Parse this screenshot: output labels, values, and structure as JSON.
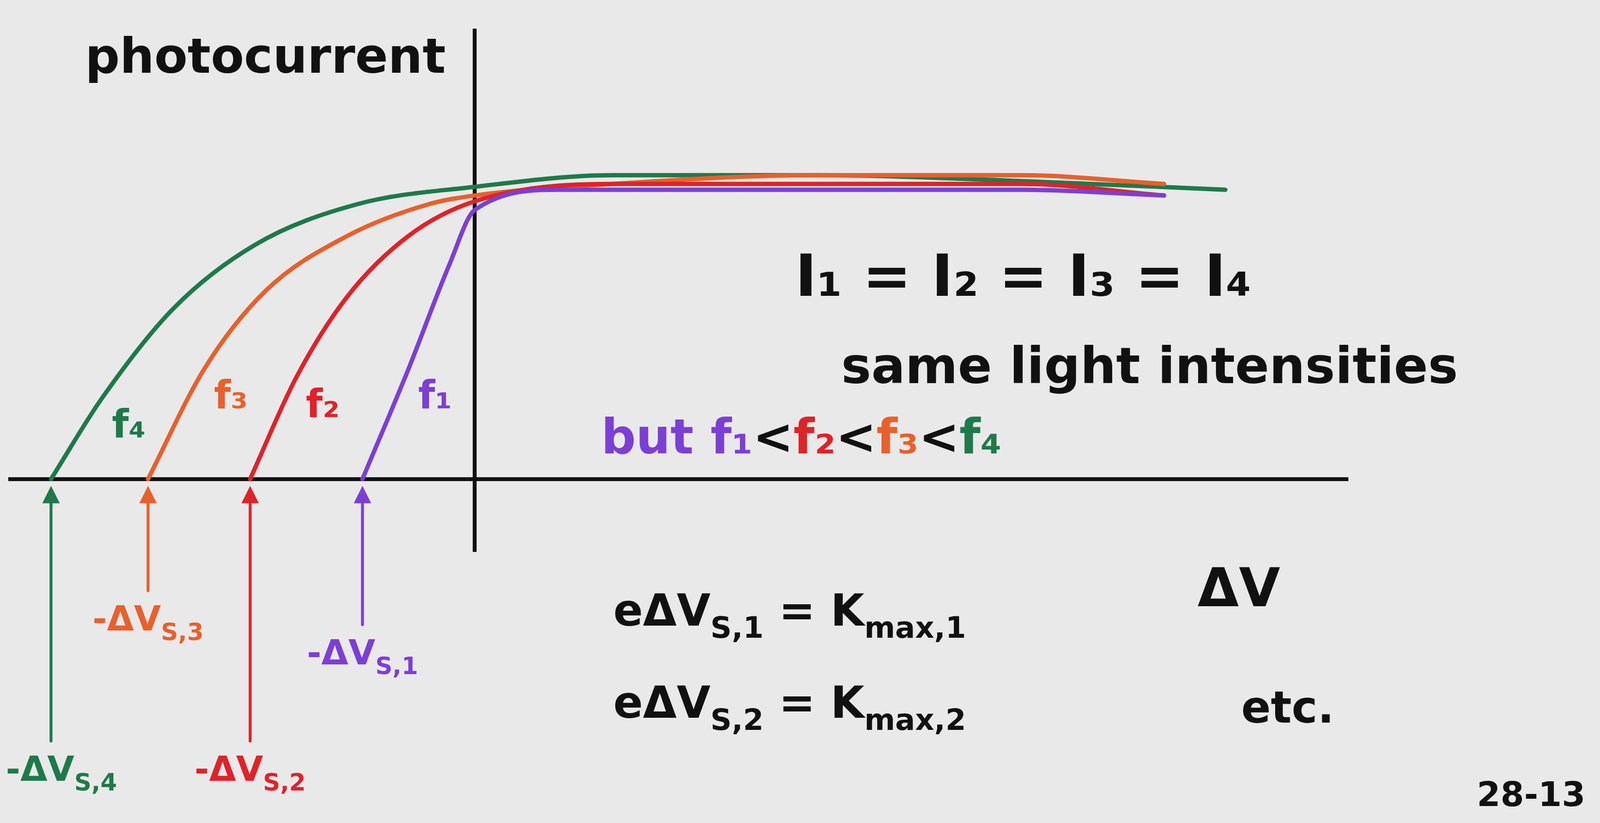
{
  "chart_data": {
    "type": "line",
    "x_label": "ΔV",
    "y_label": "photocurrent",
    "xlim": [
      -9.1,
      17.1
    ],
    "ylim": [
      -2.5,
      15.5
    ],
    "tick_labels": false,
    "grid": false,
    "series": [
      {
        "name": "f₁",
        "color": "#7b3fd6",
        "x": [
          -2.2,
          -1.3,
          -0.5,
          0,
          1.7,
          6.7,
          10.7,
          13.5
        ],
        "values": [
          0,
          3.8,
          7.4,
          9.3,
          10.0,
          10.0,
          10.0,
          9.8
        ],
        "stopping_label": [
          {
            "text": "-ΔV"
          },
          {
            "text": "S,1",
            "sub": true
          }
        ]
      },
      {
        "name": "f₂",
        "color": "#e0222a",
        "x": [
          -4.4,
          -3.5,
          -2.5,
          -1.3,
          0,
          2.7,
          6.7,
          10.7,
          13.5
        ],
        "values": [
          0,
          3.5,
          6.3,
          8.4,
          9.6,
          10.2,
          10.2,
          10.2,
          9.8
        ],
        "stopping_label": [
          {
            "text": "-ΔV"
          },
          {
            "text": "S,2",
            "sub": true
          }
        ]
      },
      {
        "name": "f₃",
        "color": "#e8602c",
        "x": [
          -6.4,
          -5.3,
          -4.1,
          -2.5,
          -0.9,
          0,
          2.7,
          6.7,
          10.7,
          13.5
        ],
        "values": [
          0,
          3.8,
          6.5,
          8.4,
          9.5,
          9.8,
          10.2,
          10.5,
          10.5,
          10.2
        ],
        "stopping_label": [
          {
            "text": "-ΔV"
          },
          {
            "text": "S,3",
            "sub": true
          }
        ]
      },
      {
        "name": "f₄",
        "color": "#1e7a4a",
        "x": [
          -8.3,
          -7.3,
          -5.9,
          -4.3,
          -2.3,
          0,
          2.7,
          6.7,
          10.7,
          14.7
        ],
        "values": [
          0,
          2.8,
          5.9,
          8.1,
          9.5,
          10.1,
          10.5,
          10.5,
          10.3,
          10.0
        ],
        "stopping_label": [
          {
            "text": "-ΔV"
          },
          {
            "text": "S,4",
            "sub": true
          }
        ]
      }
    ],
    "annotations": [
      [
        {
          "text": "I₁ = I₂ = I₃ = I₄"
        }
      ],
      [
        {
          "text": "same light intensities"
        }
      ],
      [
        {
          "text": "but f₁",
          "color": "#7b3fd6"
        },
        {
          "text": "<"
        },
        {
          "text": "f₂",
          "color": "#e0222a"
        },
        {
          "text": "<"
        },
        {
          "text": "f₃",
          "color": "#e8602c"
        },
        {
          "text": "<"
        },
        {
          "text": "f₄",
          "color": "#1e7a4a"
        }
      ],
      [
        {
          "text": "eΔV"
        },
        {
          "text": "S,1",
          "sub": true
        },
        {
          "text": " = K"
        },
        {
          "text": "max,1",
          "sub": true
        }
      ],
      [
        {
          "text": "eΔV"
        },
        {
          "text": "S,2",
          "sub": true
        },
        {
          "text": " = K"
        },
        {
          "text": "max,2",
          "sub": true
        }
      ],
      [
        {
          "text": "etc."
        }
      ],
      [
        {
          "text": "28-13"
        }
      ]
    ]
  }
}
